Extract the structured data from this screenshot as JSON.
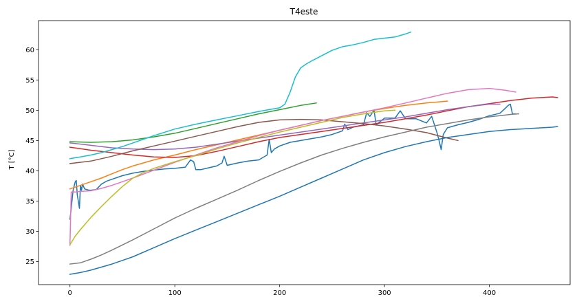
{
  "chart_data": {
    "type": "line",
    "title": "T4este",
    "xlabel": "",
    "ylabel": "T [°C]",
    "xlim": [
      -30,
      477
    ],
    "ylim": [
      21.2,
      64.8
    ],
    "xticks": [
      0,
      100,
      200,
      300,
      400
    ],
    "yticks": [
      25,
      30,
      35,
      40,
      45,
      50,
      55,
      60
    ],
    "grid": false,
    "legend": "none",
    "series": [
      {
        "color": "#1f77b4",
        "x": [
          0,
          1,
          3,
          5,
          6,
          7,
          8,
          9,
          10,
          11,
          12,
          14,
          16,
          18,
          20,
          25,
          30,
          35,
          40,
          50,
          60,
          70,
          80,
          90,
          100,
          110,
          115,
          118,
          120,
          125,
          130,
          140,
          145,
          147,
          150,
          160,
          170,
          180,
          188,
          190,
          192,
          195,
          200,
          210,
          220,
          230,
          240,
          250,
          260,
          262,
          265,
          270,
          280,
          283,
          286,
          290,
          292,
          300,
          310,
          315,
          320,
          330,
          340,
          345,
          350,
          352,
          354,
          356,
          360,
          370,
          380,
          390,
          400,
          410,
          415,
          418,
          420,
          422,
          425
        ],
        "y": [
          32.0,
          33.5,
          36.8,
          38.2,
          38.4,
          36.0,
          35.0,
          33.8,
          37.6,
          36.8,
          37.8,
          37.0,
          36.9,
          36.8,
          36.8,
          36.9,
          37.8,
          38.3,
          38.6,
          39.2,
          39.6,
          39.9,
          40.1,
          40.3,
          40.4,
          40.6,
          41.8,
          41.5,
          40.2,
          40.2,
          40.4,
          40.8,
          41.3,
          42.4,
          40.9,
          41.3,
          41.6,
          41.8,
          42.6,
          45.2,
          43.0,
          43.6,
          44.1,
          44.7,
          45.0,
          45.3,
          45.6,
          46.0,
          46.6,
          47.7,
          46.8,
          47.2,
          47.6,
          49.6,
          49.0,
          50.0,
          47.6,
          48.7,
          48.7,
          49.9,
          48.6,
          48.6,
          47.9,
          49.0,
          46.3,
          45.0,
          43.5,
          46.0,
          47.1,
          47.6,
          48.0,
          48.5,
          49.1,
          49.5,
          50.3,
          50.8,
          51.0,
          49.4,
          49.4
        ]
      },
      {
        "color": "#ff7f0e",
        "x": [
          0,
          10,
          20,
          30,
          40,
          50,
          60,
          80,
          100,
          120,
          140,
          160,
          180,
          200,
          220,
          240,
          260,
          280,
          300,
          320,
          340,
          360
        ],
        "y": [
          37.0,
          37.6,
          38.2,
          38.8,
          39.5,
          40.2,
          40.8,
          41.8,
          42.6,
          43.5,
          44.3,
          45.1,
          45.9,
          46.7,
          47.5,
          48.3,
          49.0,
          49.7,
          50.3,
          50.8,
          51.2,
          51.5
        ]
      },
      {
        "color": "#2ca02c",
        "x": [
          0,
          20,
          40,
          60,
          80,
          100,
          120,
          140,
          160,
          180,
          200,
          220,
          235
        ],
        "y": [
          44.8,
          44.7,
          44.8,
          45.1,
          45.6,
          46.2,
          47.0,
          47.8,
          48.6,
          49.4,
          50.1,
          50.8,
          51.2
        ]
      },
      {
        "color": "#d62728",
        "x": [
          0,
          20,
          40,
          60,
          80,
          100,
          120,
          140,
          160,
          180,
          200,
          220,
          240,
          260,
          280,
          300,
          320,
          340,
          360,
          380,
          400,
          420,
          440,
          460,
          465
        ],
        "y": [
          43.9,
          43.4,
          43.0,
          42.6,
          42.3,
          42.2,
          42.5,
          43.2,
          44.0,
          44.8,
          45.5,
          46.0,
          46.5,
          47.0,
          47.5,
          48.0,
          48.6,
          49.2,
          49.9,
          50.6,
          51.1,
          51.6,
          52.0,
          52.2,
          52.1
        ]
      },
      {
        "color": "#9467bd",
        "x": [
          0,
          20,
          40,
          60,
          80,
          100,
          120,
          140,
          160,
          180,
          200,
          220,
          240,
          260,
          280,
          300,
          320,
          340,
          360,
          380,
          400,
          410
        ],
        "y": [
          44.6,
          44.2,
          43.8,
          43.6,
          43.5,
          43.6,
          43.9,
          44.4,
          44.9,
          45.4,
          45.9,
          46.4,
          46.9,
          47.4,
          47.9,
          48.4,
          48.9,
          49.5,
          50.1,
          50.6,
          51.0,
          51.0
        ]
      },
      {
        "color": "#8c564b",
        "x": [
          0,
          20,
          40,
          60,
          80,
          100,
          120,
          140,
          160,
          180,
          200,
          220,
          240,
          260,
          280,
          300,
          320,
          340,
          360,
          370
        ],
        "y": [
          41.2,
          41.6,
          42.4,
          43.3,
          44.1,
          44.9,
          45.7,
          46.5,
          47.3,
          48.0,
          48.4,
          48.5,
          48.4,
          48.1,
          47.8,
          47.4,
          46.9,
          46.3,
          45.4,
          45.0
        ]
      },
      {
        "color": "#e377c2",
        "x": [
          0,
          0.6,
          1.2,
          3,
          5,
          10,
          20,
          30,
          40,
          50,
          60,
          80,
          100,
          120,
          140,
          160,
          180,
          200,
          220,
          240,
          260,
          280,
          300,
          320,
          340,
          360,
          380,
          400,
          415,
          425
        ],
        "y": [
          27.7,
          32.5,
          36.5,
          36.5,
          36.5,
          36.6,
          36.7,
          37.1,
          37.6,
          38.2,
          38.8,
          40.1,
          41.4,
          42.6,
          43.8,
          44.8,
          45.8,
          46.7,
          47.5,
          48.3,
          49.0,
          49.7,
          50.4,
          51.2,
          52.0,
          52.8,
          53.4,
          53.6,
          53.3,
          53.0
        ]
      },
      {
        "color": "#7f7f7f",
        "x": [
          0,
          10,
          20,
          30,
          40,
          60,
          80,
          100,
          120,
          140,
          160,
          180,
          200,
          220,
          240,
          260,
          280,
          300,
          320,
          340,
          360,
          380,
          400,
          420,
          428
        ],
        "y": [
          24.6,
          24.8,
          25.4,
          26.1,
          26.9,
          28.6,
          30.4,
          32.2,
          33.8,
          35.3,
          36.8,
          38.4,
          39.9,
          41.3,
          42.6,
          43.7,
          44.7,
          45.6,
          46.4,
          47.2,
          47.8,
          48.4,
          48.9,
          49.3,
          49.4
        ]
      },
      {
        "color": "#bcbd22",
        "x": [
          0,
          5,
          10,
          20,
          30,
          40,
          50,
          60,
          70,
          80,
          100,
          120,
          140,
          160,
          180,
          200,
          220,
          240,
          260,
          280,
          300,
          310
        ],
        "y": [
          27.8,
          29.2,
          30.3,
          32.3,
          34.1,
          35.8,
          37.4,
          38.8,
          39.7,
          40.4,
          41.5,
          42.5,
          43.6,
          44.6,
          45.5,
          46.4,
          47.2,
          48.0,
          48.8,
          49.4,
          49.9,
          50.0
        ]
      },
      {
        "color": "#17becf",
        "x": [
          0,
          10,
          20,
          30,
          40,
          50,
          60,
          80,
          100,
          120,
          140,
          160,
          180,
          200,
          205,
          210,
          215,
          220,
          225,
          230,
          240,
          250,
          260,
          270,
          280,
          290,
          300,
          310,
          320,
          325
        ],
        "y": [
          42.0,
          42.3,
          42.6,
          43.0,
          43.5,
          44.0,
          44.6,
          45.8,
          46.9,
          47.7,
          48.4,
          49.1,
          49.8,
          50.4,
          51.0,
          53.0,
          55.5,
          57.0,
          57.6,
          58.1,
          59.0,
          59.9,
          60.5,
          60.8,
          61.2,
          61.7,
          61.9,
          62.1,
          62.6,
          62.9
        ]
      },
      {
        "color": "#1f77b4",
        "x": [
          0,
          10,
          20,
          30,
          40,
          50,
          60,
          80,
          100,
          120,
          140,
          160,
          180,
          200,
          220,
          240,
          260,
          280,
          300,
          320,
          340,
          360,
          380,
          400,
          420,
          440,
          460,
          465
        ],
        "y": [
          22.9,
          23.2,
          23.6,
          24.1,
          24.6,
          25.2,
          25.8,
          27.3,
          28.8,
          30.2,
          31.6,
          33.0,
          34.4,
          35.8,
          37.3,
          38.8,
          40.3,
          41.8,
          43.0,
          44.0,
          44.8,
          45.5,
          46.0,
          46.5,
          46.8,
          47.0,
          47.2,
          47.3
        ]
      }
    ]
  }
}
